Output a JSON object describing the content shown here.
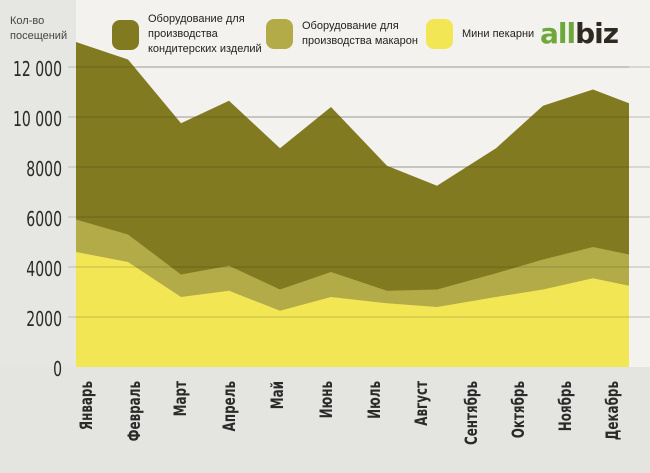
{
  "chart_data": {
    "type": "area",
    "stacked": true,
    "title": "",
    "ylabel": "Кол-во посещений",
    "xlabel": "",
    "ylim": [
      0,
      13000
    ],
    "yticks": [
      0,
      2000,
      4000,
      6000,
      8000,
      10000,
      12000
    ],
    "ytick_labels": [
      "0",
      "2000",
      "4000",
      "6000",
      "8000",
      "10 000",
      "12 000"
    ],
    "grid": true,
    "legend_position": "top",
    "categories": [
      "Январь",
      "Февраль",
      "Март",
      "Апрель",
      "Май",
      "Июнь",
      "Июль",
      "Август",
      "Сентябрь",
      "Октябрь",
      "Ноябрь",
      "Декабрь"
    ],
    "series": [
      {
        "name": "Мини пекарни",
        "color": "#f2e655",
        "values": [
          4600,
          4200,
          2800,
          3050,
          2250,
          2800,
          2550,
          2400,
          2800,
          3100,
          3550,
          3250
        ]
      },
      {
        "name": "Оборудование для производства макарон",
        "color": "#b3ab48",
        "values": [
          1300,
          1100,
          900,
          1000,
          850,
          1000,
          500,
          700,
          950,
          1200,
          1250,
          1250
        ]
      },
      {
        "name": "Оборудование для производства кондитерских изделий",
        "color": "#827a21",
        "values": [
          7100,
          7000,
          6050,
          6600,
          5650,
          6600,
          5000,
          4150,
          5000,
          6150,
          6300,
          6050
        ]
      }
    ],
    "stack_totals_top": [
      13000,
      12300,
      9750,
      10650,
      8750,
      10400,
      8050,
      7250,
      8750,
      10450,
      11100,
      10550
    ]
  },
  "legend": [
    {
      "lines": [
        "Оборудование для",
        "производства",
        "кондитерских изделий"
      ],
      "color": "#827a21"
    },
    {
      "lines": [
        "Оборудование для",
        "производства макарон"
      ],
      "color": "#b3ab48"
    },
    {
      "lines": [
        "Мини пекарни"
      ],
      "color": "#f2e655"
    }
  ],
  "ylabel_lines": [
    "Кол-во",
    "посещений"
  ],
  "logo": {
    "green": "all",
    "dark": "biz"
  }
}
